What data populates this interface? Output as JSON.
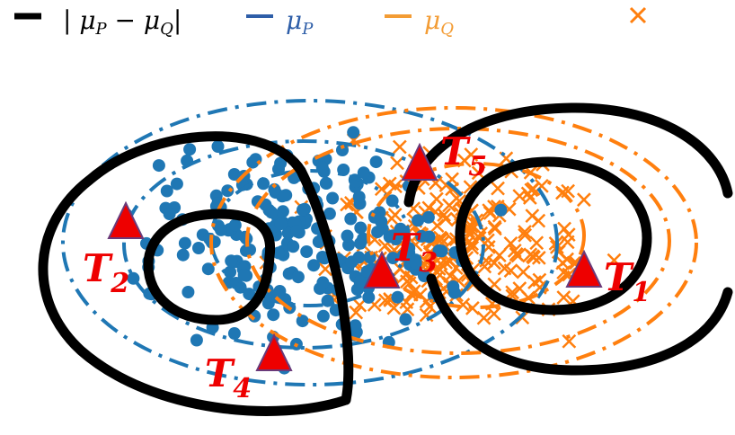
{
  "legend": [
    {
      "label": "| μ_P − μ_Q|",
      "color": "#000000",
      "style": "solid",
      "icon": "solid-line-icon"
    },
    {
      "label": "μ_P",
      "color": "#2e5ea8",
      "style": "solid",
      "icon": "dash-line-icon"
    },
    {
      "label": "μ_Q",
      "color": "#f39c34",
      "style": "solid",
      "icon": "dash-line-icon"
    }
  ],
  "colors": {
    "diff": "#000000",
    "p": "#1f77b4",
    "q": "#ff7f0e",
    "p_legend": "#2e5ea8",
    "marker": "#ee0000",
    "label": "#ee0000"
  },
  "markers": [
    {
      "id": "T1",
      "base": "T",
      "sub": "1"
    },
    {
      "id": "T2",
      "base": "T",
      "sub": "2"
    },
    {
      "id": "T3",
      "base": "T",
      "sub": "3"
    },
    {
      "id": "T4",
      "base": "T",
      "sub": "4"
    },
    {
      "id": "T5",
      "base": "T",
      "sub": "5"
    }
  ],
  "point_sets": {
    "P": "blue filled dots",
    "Q": "orange crosses"
  }
}
